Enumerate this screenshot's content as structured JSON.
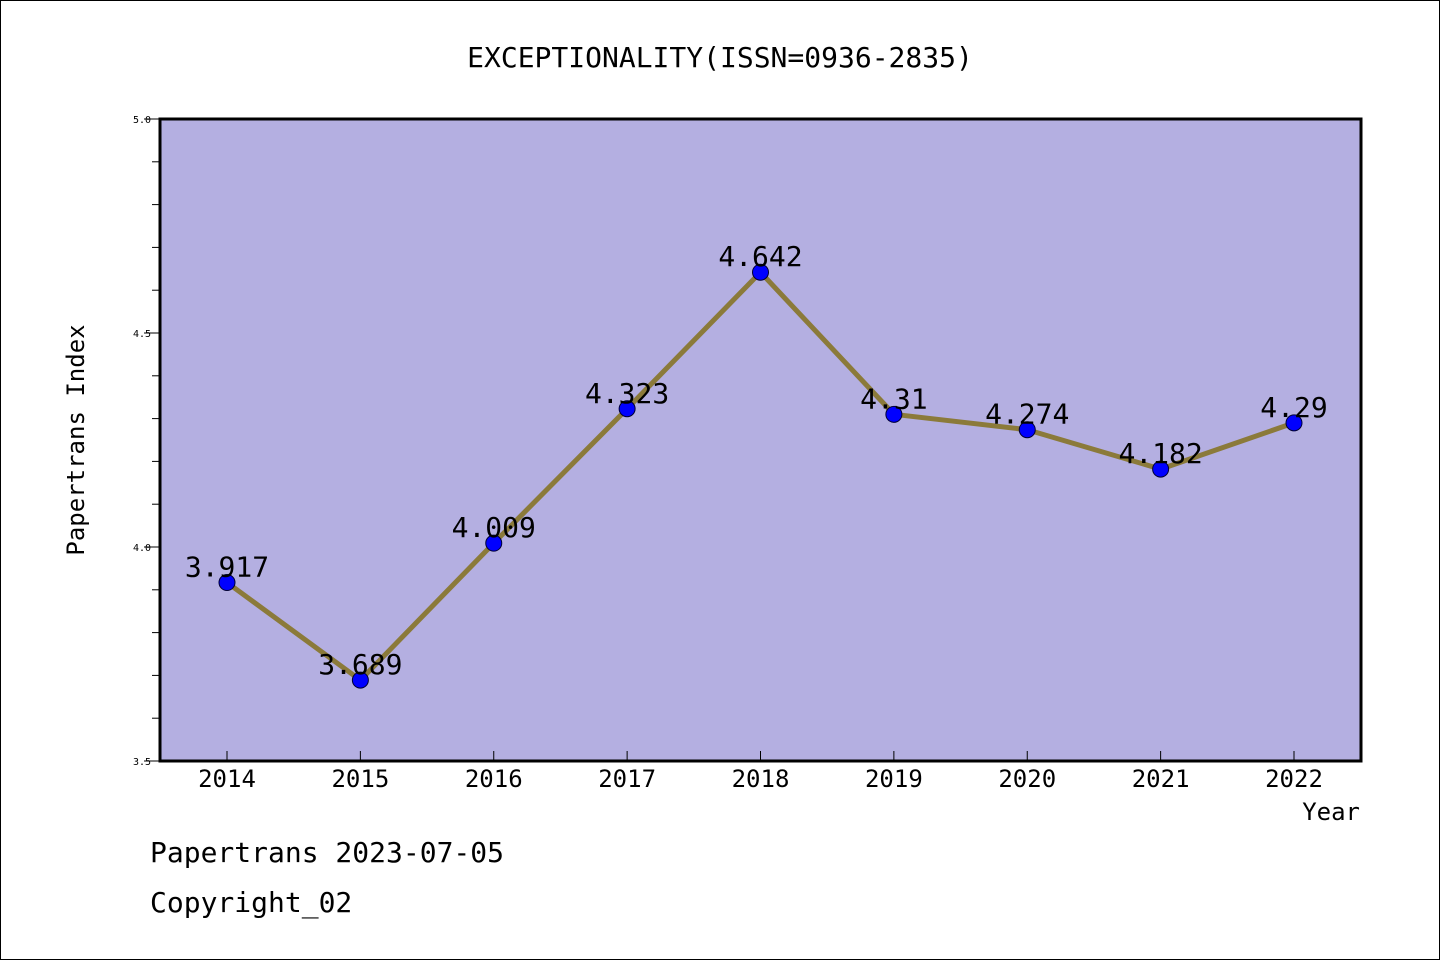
{
  "chart_data": {
    "type": "line",
    "title": "EXCEPTIONALITY(ISSN=0936-2835)",
    "xlabel": "Year",
    "ylabel": "Papertrans Index",
    "categories": [
      "2014",
      "2015",
      "2016",
      "2017",
      "2018",
      "2019",
      "2020",
      "2021",
      "2022"
    ],
    "series": [
      {
        "values": [
          3.917,
          3.689,
          4.009,
          4.323,
          4.642,
          4.31,
          4.274,
          4.182,
          4.29
        ],
        "data_labels": [
          "3.917",
          "3.689",
          "4.009",
          "4.323",
          "4.642",
          "4.31",
          "4.274",
          "4.182",
          "4.29"
        ],
        "line_color": "#8b7a3a",
        "marker_color": "#0000ff"
      }
    ],
    "ylim": [
      3.5,
      5.0
    ],
    "y_ticks": [
      "3.5",
      "4.0",
      "4.5",
      "5.0"
    ],
    "plot_background": "#b4afe1",
    "grid": false,
    "legend": "none"
  },
  "footer": {
    "line1": "Papertrans 2023-07-05",
    "line2": "Copyright_02"
  }
}
